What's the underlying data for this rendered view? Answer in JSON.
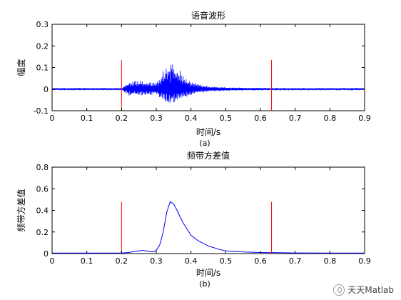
{
  "chart_data": [
    {
      "type": "line",
      "title": "语音波形",
      "xlabel": "时间/s",
      "ylabel": "幅度",
      "caption": "(a)",
      "xlim": [
        0,
        0.9
      ],
      "ylim": [
        -0.1,
        0.3
      ],
      "xticks": [
        "0",
        "0.1",
        "0.2",
        "0.3",
        "0.4",
        "0.5",
        "0.6",
        "0.7",
        "0.8",
        "0.9"
      ],
      "yticks": [
        "-0.1",
        "0",
        "0.1",
        "0.2",
        "0.3"
      ],
      "grid": false,
      "series_color": "#0000ff",
      "marker_color": "#ff0000",
      "markers": [
        {
          "x": 0.2,
          "ymin": -0.1,
          "ymax": 0.135
        },
        {
          "x": 0.632,
          "ymin": -0.1,
          "ymax": 0.135
        }
      ],
      "envelope": {
        "x": [
          0,
          0.2,
          0.205,
          0.22,
          0.24,
          0.26,
          0.28,
          0.3,
          0.32,
          0.335,
          0.345,
          0.36,
          0.38,
          0.4,
          0.42,
          0.45,
          0.5,
          0.55,
          0.6,
          0.632,
          0.7,
          0.9
        ],
        "pos": [
          0.005,
          0.005,
          0.01,
          0.035,
          0.045,
          0.04,
          0.035,
          0.03,
          0.09,
          0.12,
          0.13,
          0.11,
          0.06,
          0.035,
          0.025,
          0.015,
          0.01,
          0.007,
          0.006,
          0.005,
          0.005,
          0.005
        ],
        "neg": [
          -0.005,
          -0.005,
          -0.01,
          -0.03,
          -0.035,
          -0.032,
          -0.03,
          -0.025,
          -0.06,
          -0.08,
          -0.07,
          -0.06,
          -0.04,
          -0.03,
          -0.02,
          -0.012,
          -0.009,
          -0.007,
          -0.006,
          -0.005,
          -0.005,
          -0.005
        ]
      }
    },
    {
      "type": "line",
      "title": "频带方差值",
      "xlabel": "时间/s",
      "ylabel": "频带方差值",
      "caption": "(b)",
      "xlim": [
        0,
        0.9
      ],
      "ylim": [
        0,
        0.8
      ],
      "xticks": [
        "0",
        "0.1",
        "0.2",
        "0.3",
        "0.4",
        "0.5",
        "0.6",
        "0.7",
        "0.8",
        "0.9"
      ],
      "yticks": [
        "0",
        "0.2",
        "0.4",
        "0.6",
        "0.8"
      ],
      "grid": false,
      "series_color": "#0000ff",
      "marker_color": "#ff0000",
      "markers": [
        {
          "x": 0.2,
          "ymin": 0,
          "ymax": 0.48
        },
        {
          "x": 0.632,
          "ymin": 0,
          "ymax": 0.48
        }
      ],
      "x": [
        0,
        0.1,
        0.2,
        0.22,
        0.24,
        0.25,
        0.26,
        0.27,
        0.28,
        0.29,
        0.3,
        0.31,
        0.32,
        0.33,
        0.34,
        0.35,
        0.36,
        0.37,
        0.38,
        0.4,
        0.42,
        0.45,
        0.48,
        0.5,
        0.55,
        0.6,
        0.65,
        0.7,
        0.8,
        0.9
      ],
      "y": [
        0.005,
        0.005,
        0.005,
        0.01,
        0.02,
        0.025,
        0.03,
        0.025,
        0.02,
        0.015,
        0.03,
        0.08,
        0.2,
        0.38,
        0.48,
        0.46,
        0.4,
        0.33,
        0.27,
        0.17,
        0.12,
        0.07,
        0.04,
        0.025,
        0.015,
        0.01,
        0.008,
        0.006,
        0.005,
        0.005
      ]
    }
  ],
  "watermark": {
    "text": "天天Matlab",
    "icon": "wechat-logo-icon"
  }
}
